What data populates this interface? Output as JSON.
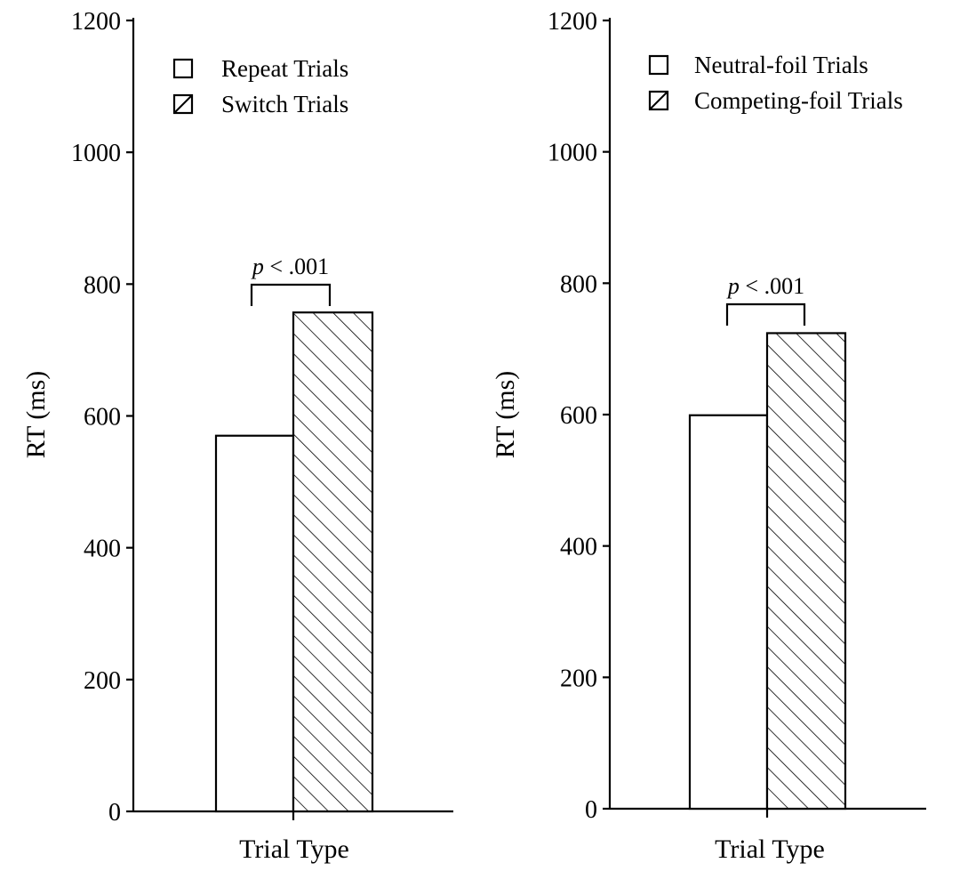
{
  "chart_data": [
    {
      "type": "bar",
      "title": "",
      "xlabel": "Trial Type",
      "ylabel": "RT (ms)",
      "ylim": [
        0,
        1200
      ],
      "yticks": [
        "0",
        "200",
        "400",
        "600",
        "800",
        "1000",
        "1200"
      ],
      "legend_position": "top-left",
      "series": [
        {
          "name": "Repeat Trials",
          "value": 570,
          "fill": "open"
        },
        {
          "name": "Switch Trials",
          "value": 757,
          "fill": "hatched"
        }
      ],
      "annotation": {
        "p": "p",
        "rest": " < .001"
      }
    },
    {
      "type": "bar",
      "title": "",
      "xlabel": "Trial Type",
      "ylabel": "RT (ms)",
      "ylim": [
        0,
        1200
      ],
      "yticks": [
        "0",
        "200",
        "400",
        "600",
        "800",
        "1000",
        "1200"
      ],
      "legend_position": "top-left",
      "series": [
        {
          "name": "Neutral-foil Trials",
          "value": 599,
          "fill": "open"
        },
        {
          "name": "Competing-foil Trials",
          "value": 724,
          "fill": "hatched"
        }
      ],
      "annotation": {
        "p": "p",
        "rest": " < .001"
      }
    }
  ]
}
